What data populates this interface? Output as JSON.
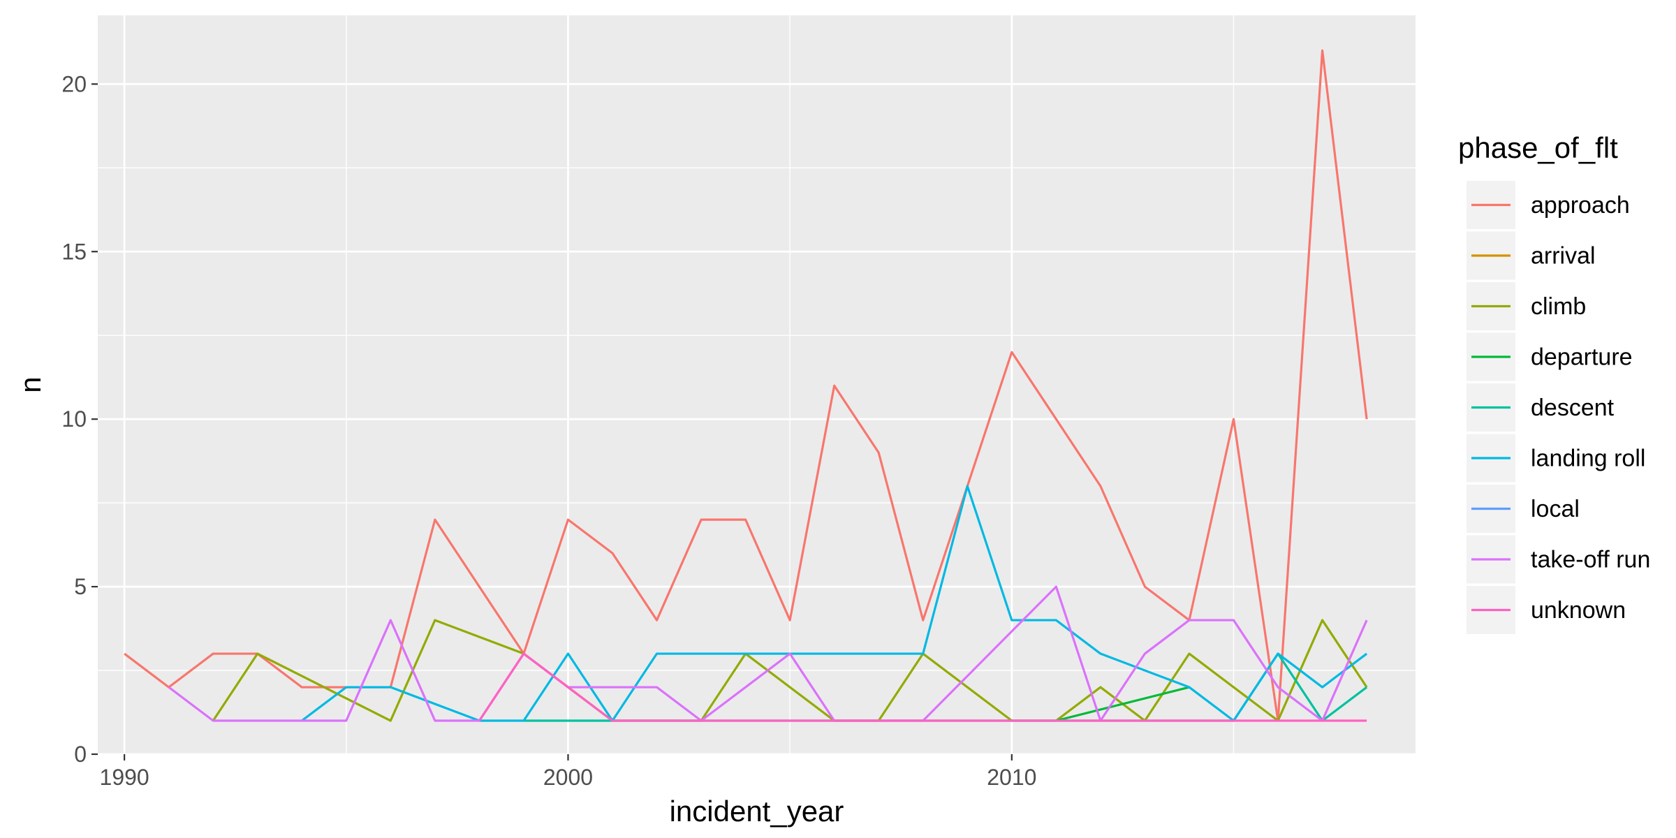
{
  "chart_data": {
    "type": "line",
    "xlabel": "incident_year",
    "ylabel": "n",
    "xlim": [
      1989.4,
      2019.1
    ],
    "ylim": [
      0,
      22.05
    ],
    "x_ticks": [
      1990,
      2000,
      2010
    ],
    "x_tick_labels": [
      "1990",
      "2000",
      "2010"
    ],
    "y_ticks": [
      0,
      5,
      10,
      15,
      20
    ],
    "y_tick_labels": [
      "0",
      "5",
      "10",
      "15",
      "20"
    ],
    "grid": true,
    "legend": {
      "title": "phase_of_flt",
      "position": "right"
    },
    "series": [
      {
        "name": "approach",
        "color": "#F8766D",
        "points": [
          [
            1990,
            3
          ],
          [
            1991,
            2
          ],
          [
            1992,
            3
          ],
          [
            1993,
            3
          ],
          [
            1994,
            2
          ],
          [
            1995,
            2
          ],
          [
            1996,
            2
          ],
          [
            1997,
            7
          ],
          [
            1998,
            5
          ],
          [
            1999,
            3
          ],
          [
            2000,
            7
          ],
          [
            2001,
            6
          ],
          [
            2002,
            4
          ],
          [
            2003,
            7
          ],
          [
            2004,
            7
          ],
          [
            2005,
            4
          ],
          [
            2006,
            11
          ],
          [
            2007,
            9
          ],
          [
            2008,
            4
          ],
          [
            2009,
            8
          ],
          [
            2010,
            12
          ],
          [
            2011,
            10
          ],
          [
            2012,
            8
          ],
          [
            2013,
            5
          ],
          [
            2014,
            4
          ],
          [
            2015,
            10
          ],
          [
            2016,
            1
          ],
          [
            2017,
            21
          ],
          [
            2018,
            10
          ]
        ]
      },
      {
        "name": "arrival",
        "color": "#D39200",
        "points": []
      },
      {
        "name": "climb",
        "color": "#93AA00",
        "points": [
          [
            1992,
            1
          ],
          [
            1993,
            3
          ],
          [
            1996,
            1
          ],
          [
            1997,
            4
          ],
          [
            1999,
            3
          ],
          [
            2000,
            2
          ],
          [
            2001,
            1
          ],
          [
            2003,
            1
          ],
          [
            2004,
            3
          ],
          [
            2006,
            1
          ],
          [
            2007,
            1
          ],
          [
            2008,
            3
          ],
          [
            2010,
            1
          ],
          [
            2011,
            1
          ],
          [
            2012,
            2
          ],
          [
            2013,
            1
          ],
          [
            2014,
            3
          ],
          [
            2016,
            1
          ],
          [
            2017,
            4
          ],
          [
            2018,
            2
          ]
        ]
      },
      {
        "name": "departure",
        "color": "#00BA38",
        "points": [
          [
            2011,
            1
          ],
          [
            2014,
            2
          ]
        ]
      },
      {
        "name": "descent",
        "color": "#00C19F",
        "points": [
          [
            1999,
            1
          ],
          [
            2015,
            1
          ],
          [
            2016,
            3
          ],
          [
            2017,
            1
          ],
          [
            2018,
            2
          ]
        ]
      },
      {
        "name": "landing roll",
        "color": "#00B9E3",
        "points": [
          [
            1994,
            1
          ],
          [
            1995,
            2
          ],
          [
            1996,
            2
          ],
          [
            1998,
            1
          ],
          [
            1999,
            1
          ],
          [
            2000,
            3
          ],
          [
            2001,
            1
          ],
          [
            2002,
            3
          ],
          [
            2008,
            3
          ],
          [
            2009,
            8
          ],
          [
            2010,
            4
          ],
          [
            2011,
            4
          ],
          [
            2012,
            3
          ],
          [
            2014,
            2
          ],
          [
            2015,
            1
          ],
          [
            2016,
            3
          ],
          [
            2017,
            2
          ],
          [
            2018,
            3
          ]
        ]
      },
      {
        "name": "local",
        "color": "#619CFF",
        "points": []
      },
      {
        "name": "take-off run",
        "color": "#DB72FB",
        "points": [
          [
            1991,
            2
          ],
          [
            1992,
            1
          ],
          [
            1995,
            1
          ],
          [
            1996,
            4
          ],
          [
            1997,
            1
          ],
          [
            1998,
            1
          ],
          [
            1999,
            3
          ],
          [
            2000,
            2
          ],
          [
            2002,
            2
          ],
          [
            2003,
            1
          ],
          [
            2005,
            3
          ],
          [
            2006,
            1
          ],
          [
            2008,
            1
          ],
          [
            2011,
            5
          ],
          [
            2012,
            1
          ],
          [
            2013,
            3
          ],
          [
            2014,
            4
          ],
          [
            2015,
            4
          ],
          [
            2016,
            2
          ],
          [
            2017,
            1
          ],
          [
            2018,
            4
          ]
        ]
      },
      {
        "name": "unknown",
        "color": "#FF61C3",
        "points": [
          [
            1998,
            1
          ],
          [
            1999,
            3
          ],
          [
            2000,
            2
          ],
          [
            2001,
            1
          ],
          [
            2018,
            1
          ]
        ]
      }
    ]
  }
}
